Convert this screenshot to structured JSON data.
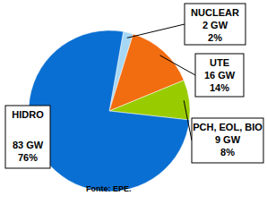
{
  "chart_data": {
    "type": "pie",
    "categories": [
      "NUCLEAR",
      "UTE",
      "PCH, EOL, BIO",
      "HIDRO"
    ],
    "values": [
      2,
      14,
      8,
      76
    ],
    "value_labels": [
      "2%",
      "14%",
      "8%",
      "76%"
    ],
    "capacity": [
      2,
      16,
      9,
      83
    ],
    "capacity_labels": [
      "2 GW",
      "16 GW",
      "9 GW",
      "83 GW"
    ],
    "colors": [
      "#a6d8f5",
      "#f26c10",
      "#99cc00",
      "#0a6fd2"
    ],
    "data_labels": true,
    "source": "Fonte: EPE."
  }
}
